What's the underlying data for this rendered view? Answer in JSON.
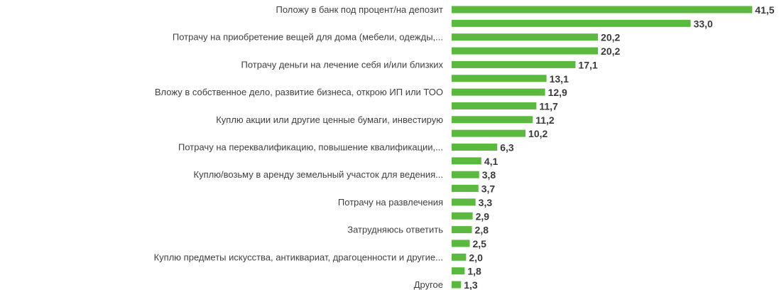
{
  "chart_data": {
    "type": "bar",
    "orientation": "horizontal",
    "bar_color": "#5cb93f",
    "grid": false,
    "legend": "none",
    "categories": [
      "Положу в банк под процент/на депозит",
      "",
      "Потрачу на приобретение вещей для дома (мебели, одежды,...",
      "",
      "Потрачу деньги на лечение себя и/или близких",
      "",
      "Вложу в собственное дело, развитие бизнеса, открою ИП или ТОО",
      "",
      "Куплю акции или другие ценные бумаги, инвестирую",
      "",
      "Потрачу на переквалификацию, повышение квалификации,...",
      "",
      "Куплю/возьму в аренду земельный участок для ведения...",
      "",
      "Потрачу на развлечения",
      "",
      "Затрудняюсь ответить",
      "",
      "Куплю предметы искусства, антиквариат, драгоценности и другие...",
      "",
      "Другое"
    ],
    "values": [
      41.5,
      33.0,
      20.2,
      20.2,
      17.1,
      13.1,
      12.9,
      11.7,
      11.2,
      10.2,
      6.3,
      4.1,
      3.8,
      3.7,
      3.3,
      2.9,
      2.8,
      2.5,
      2.0,
      1.8,
      1.3
    ],
    "value_labels": [
      "41,5",
      "33,0",
      "20,2",
      "20,2",
      "17,1",
      "13,1",
      "12,9",
      "11,7",
      "11,2",
      "10,2",
      "6,3",
      "4,1",
      "3,8",
      "3,7",
      "3,3",
      "2,9",
      "2,8",
      "2,5",
      "2,0",
      "1,8",
      "1,3"
    ]
  }
}
